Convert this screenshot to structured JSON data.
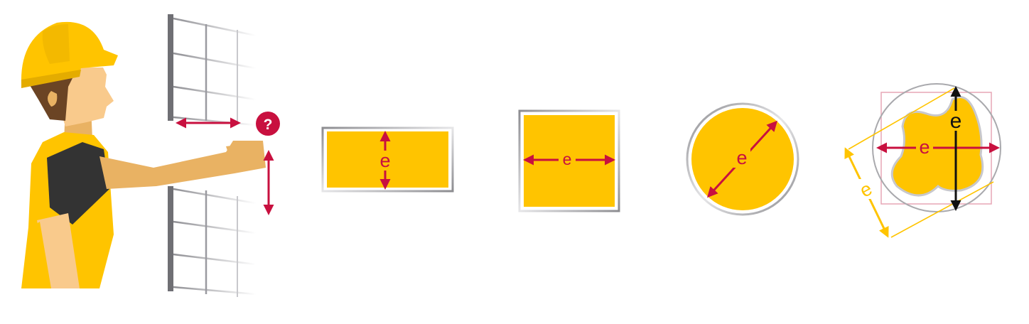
{
  "colors": {
    "yellow": "#FFC400",
    "hat_shadow": "#E4AC00",
    "skin": "#F9CA8C",
    "skin_dark": "#E9B263",
    "hair": "#6B4424",
    "shirt": "#333333",
    "crimson": "#C8103F",
    "frame_gray": "#A9A9AD",
    "pink_line": "#E7A6B5",
    "black": "#111111"
  },
  "question_mark": "?",
  "shapes": [
    {
      "id": "rectangle",
      "dimension_label": "e",
      "arrow": "vertical"
    },
    {
      "id": "square",
      "dimension_label": "e",
      "arrow": "horizontal"
    },
    {
      "id": "circle",
      "dimension_label": "e",
      "arrow": "diagonal"
    },
    {
      "id": "irregular",
      "labels": {
        "horizontal": "e",
        "vertical": "e",
        "diagonal": "e"
      }
    }
  ]
}
